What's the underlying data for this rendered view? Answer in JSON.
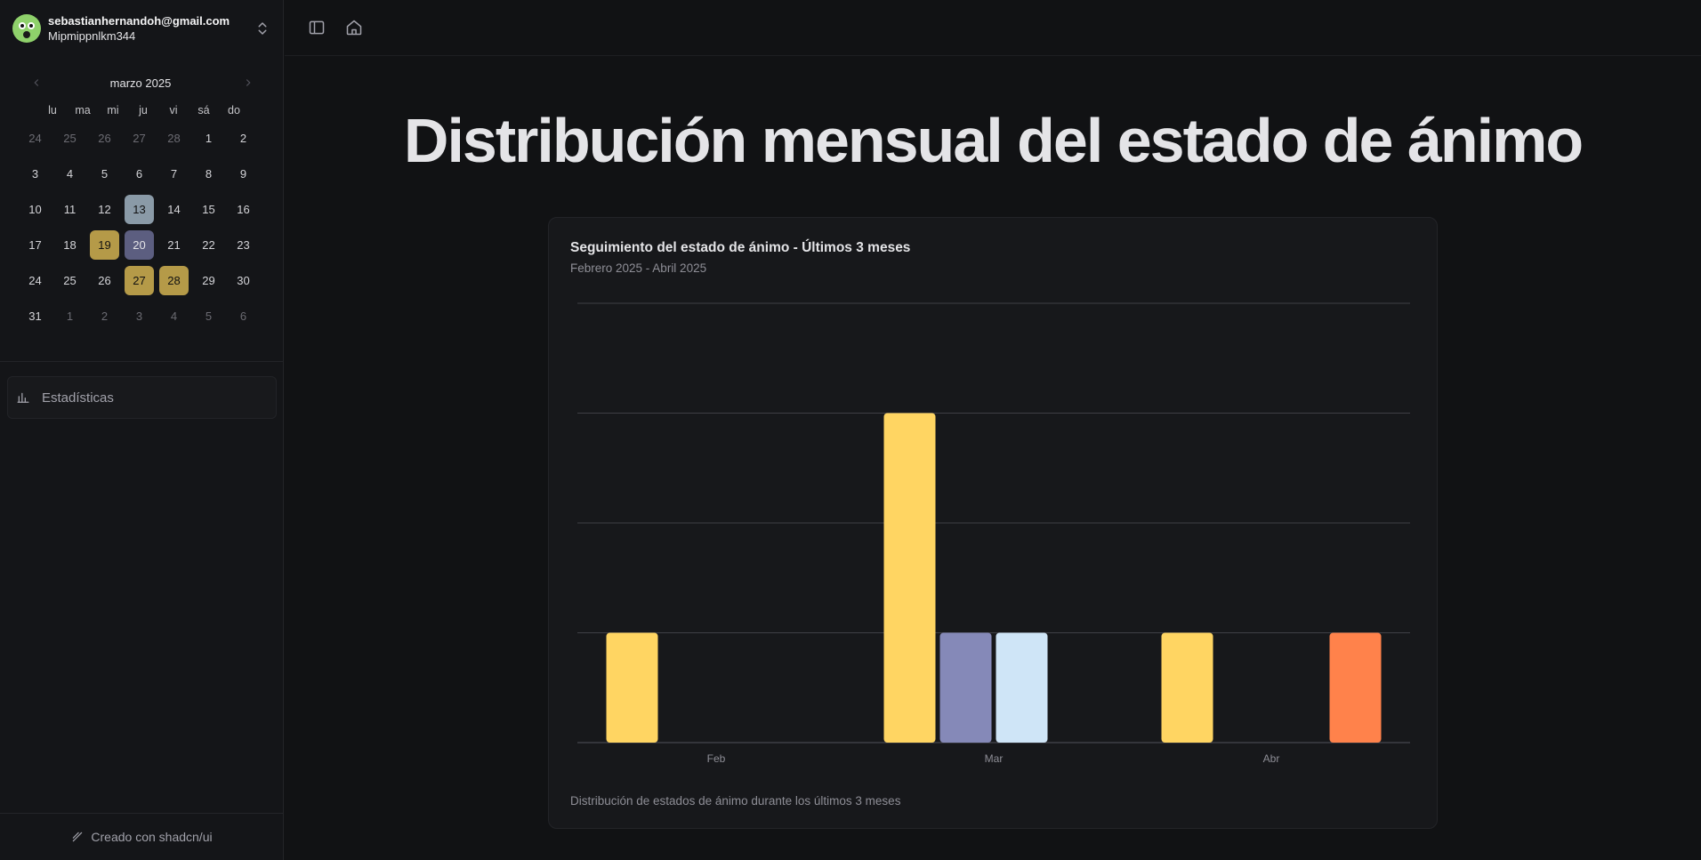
{
  "user": {
    "email": "sebastianhernandoh@gmail.com",
    "username": "Mipmippnlkm344"
  },
  "calendar": {
    "month_label": "marzo 2025",
    "weekdays": [
      "lu",
      "ma",
      "mi",
      "ju",
      "vi",
      "sá",
      "do"
    ],
    "days": [
      {
        "label": "24",
        "outside": true,
        "mood": null
      },
      {
        "label": "25",
        "outside": true,
        "mood": null
      },
      {
        "label": "26",
        "outside": true,
        "mood": null
      },
      {
        "label": "27",
        "outside": true,
        "mood": null
      },
      {
        "label": "28",
        "outside": true,
        "mood": null
      },
      {
        "label": "1",
        "outside": false,
        "mood": null
      },
      {
        "label": "2",
        "outside": false,
        "mood": null
      },
      {
        "label": "3",
        "outside": false,
        "mood": null
      },
      {
        "label": "4",
        "outside": false,
        "mood": null
      },
      {
        "label": "5",
        "outside": false,
        "mood": null
      },
      {
        "label": "6",
        "outside": false,
        "mood": null
      },
      {
        "label": "7",
        "outside": false,
        "mood": null
      },
      {
        "label": "8",
        "outside": false,
        "mood": null
      },
      {
        "label": "9",
        "outside": false,
        "mood": null
      },
      {
        "label": "10",
        "outside": false,
        "mood": null
      },
      {
        "label": "11",
        "outside": false,
        "mood": null
      },
      {
        "label": "12",
        "outside": false,
        "mood": null
      },
      {
        "label": "13",
        "outside": false,
        "mood": "gray"
      },
      {
        "label": "14",
        "outside": false,
        "mood": null
      },
      {
        "label": "15",
        "outside": false,
        "mood": null
      },
      {
        "label": "16",
        "outside": false,
        "mood": null
      },
      {
        "label": "17",
        "outside": false,
        "mood": null
      },
      {
        "label": "18",
        "outside": false,
        "mood": null
      },
      {
        "label": "19",
        "outside": false,
        "mood": "yellow"
      },
      {
        "label": "20",
        "outside": false,
        "mood": "purple"
      },
      {
        "label": "21",
        "outside": false,
        "mood": null
      },
      {
        "label": "22",
        "outside": false,
        "mood": null
      },
      {
        "label": "23",
        "outside": false,
        "mood": null
      },
      {
        "label": "24",
        "outside": false,
        "mood": null
      },
      {
        "label": "25",
        "outside": false,
        "mood": null
      },
      {
        "label": "26",
        "outside": false,
        "mood": null
      },
      {
        "label": "27",
        "outside": false,
        "mood": "yellow"
      },
      {
        "label": "28",
        "outside": false,
        "mood": "yellow"
      },
      {
        "label": "29",
        "outside": false,
        "mood": null
      },
      {
        "label": "30",
        "outside": false,
        "mood": null
      },
      {
        "label": "31",
        "outside": false,
        "mood": null
      },
      {
        "label": "1",
        "outside": true,
        "mood": null
      },
      {
        "label": "2",
        "outside": true,
        "mood": null
      },
      {
        "label": "3",
        "outside": true,
        "mood": null
      },
      {
        "label": "4",
        "outside": true,
        "mood": null
      },
      {
        "label": "5",
        "outside": true,
        "mood": null
      },
      {
        "label": "6",
        "outside": true,
        "mood": null
      }
    ]
  },
  "nav": {
    "statistics_label": "Estadísticas"
  },
  "footer": {
    "credit": "Creado con shadcn/ui"
  },
  "page": {
    "title": "Distribución mensual del estado de ánimo"
  },
  "card": {
    "title": "Seguimiento del estado de ánimo - Últimos 3 meses",
    "subtitle": "Febrero 2025 - Abril 2025",
    "footer": "Distribución de estados de ánimo durante los últimos 3 meses"
  },
  "chart_data": {
    "type": "bar",
    "categories": [
      "Feb",
      "Mar",
      "Abr"
    ],
    "ylim": [
      0,
      4
    ],
    "grid": true,
    "series": [
      {
        "color": "#ffd562",
        "values": [
          1,
          3,
          1
        ]
      },
      {
        "color": "#8589b8",
        "values": [
          0,
          1,
          0
        ]
      },
      {
        "color": "#cfe5f7",
        "values": [
          0,
          1,
          0
        ]
      },
      {
        "color": "#ff824b",
        "values": [
          0,
          0,
          1
        ]
      }
    ]
  }
}
